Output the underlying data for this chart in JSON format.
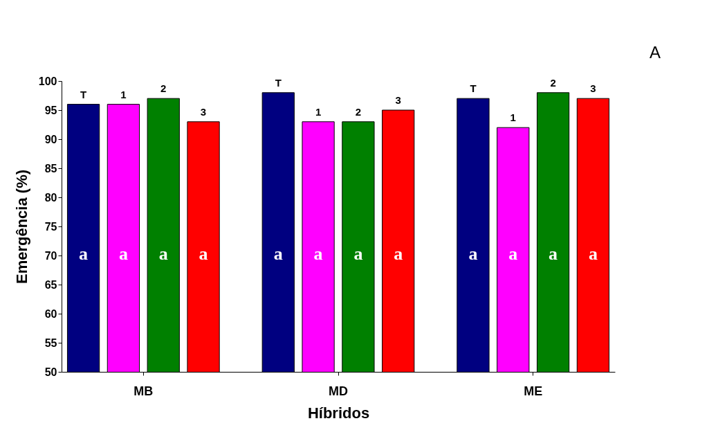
{
  "chart_data": {
    "type": "bar",
    "xlabel": "Híbridos",
    "ylabel": "Emergência (%)",
    "categories": [
      "MB",
      "MD",
      "ME"
    ],
    "series": [
      {
        "name": "T",
        "color": "#000080",
        "values": [
          96,
          98,
          97
        ]
      },
      {
        "name": "1",
        "color": "#ff00ff",
        "values": [
          96,
          93,
          92
        ]
      },
      {
        "name": "2",
        "color": "#008000",
        "values": [
          97,
          93,
          98
        ]
      },
      {
        "name": "3",
        "color": "#ff0000",
        "values": [
          93,
          95,
          97
        ]
      }
    ],
    "ylim": [
      50,
      100
    ],
    "yticks": [
      50,
      55,
      60,
      65,
      70,
      75,
      80,
      85,
      90,
      95,
      100
    ],
    "grid": false,
    "legend": false,
    "annotations": [
      "a",
      "a",
      "a",
      "a",
      "a",
      "a",
      "a",
      "a",
      "a",
      "a",
      "a",
      "a",
      "A"
    ]
  }
}
